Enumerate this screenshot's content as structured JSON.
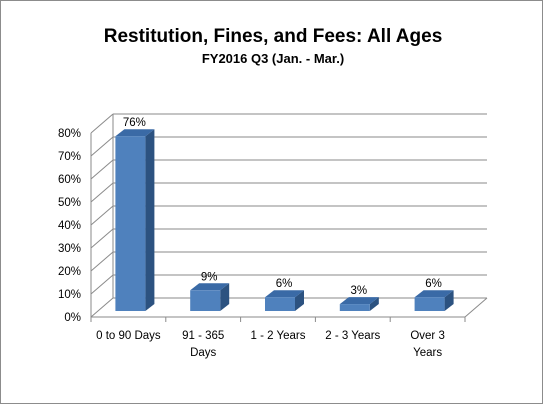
{
  "chart_data": {
    "type": "bar",
    "title": "Restitution,  Fines, and Fees: All Ages",
    "subtitle": "FY2016 Q3 (Jan. - Mar.)",
    "categories": [
      [
        "0 to 90 Days"
      ],
      [
        "91 - 365",
        "Days"
      ],
      [
        "1 - 2 Years"
      ],
      [
        "2 - 3 Years"
      ],
      [
        "Over 3",
        "Years"
      ]
    ],
    "values": [
      76,
      9,
      6,
      3,
      6
    ],
    "data_labels": [
      "76%",
      "9%",
      "6%",
      "3%",
      "6%"
    ],
    "ylim": [
      0,
      80
    ],
    "yticks": [
      0,
      10,
      20,
      30,
      40,
      50,
      60,
      70,
      80
    ],
    "ytick_labels": [
      "0%",
      "10%",
      "20%",
      "30%",
      "40%",
      "50%",
      "60%",
      "70%",
      "80%"
    ],
    "grid": true,
    "legend": "none",
    "style": "3d-column",
    "colors": {
      "bar_front": "#4f81bd",
      "bar_side": "#2c5280",
      "bar_top": "#3a6aa6",
      "grid": "#8a8a8a"
    }
  }
}
